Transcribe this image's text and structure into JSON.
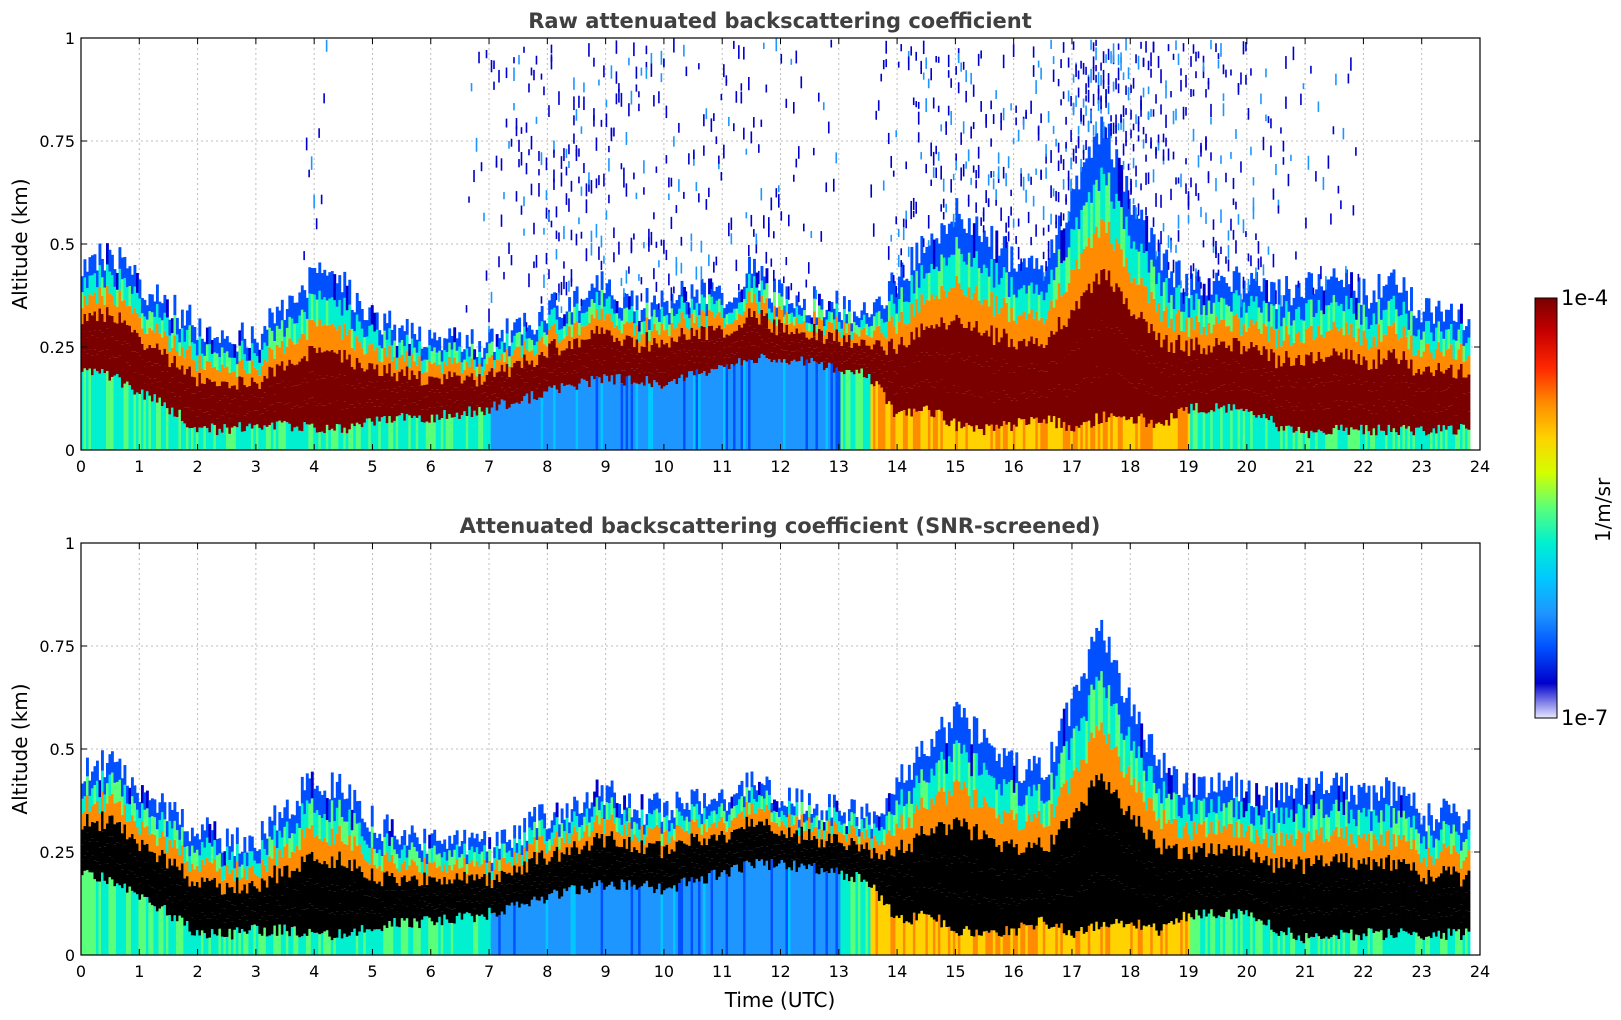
{
  "colors": {
    "colormap": [
      "#e8e8ff",
      "#0000cc",
      "#0050ff",
      "#1e96ff",
      "#00c8ff",
      "#00f0d0",
      "#5aff7a",
      "#d2ff00",
      "#ffd200",
      "#ff8c00",
      "#ff2800",
      "#c80000",
      "#7a0000"
    ],
    "screened_core": "#000000",
    "grid": "#bdbdbd"
  },
  "chart_data": [
    {
      "type": "heatmap",
      "title": "Raw attenuated backscattering coefficient",
      "xlabel": "",
      "ylabel": "Altitude (km)",
      "xlim": [
        0,
        24
      ],
      "ylim": [
        0,
        1
      ],
      "x_ticks": [
        "0",
        "1",
        "2",
        "3",
        "4",
        "5",
        "6",
        "7",
        "8",
        "9",
        "10",
        "11",
        "12",
        "13",
        "14",
        "15",
        "16",
        "17",
        "18",
        "19",
        "20",
        "21",
        "22",
        "23",
        "24"
      ],
      "y_ticks": [
        "0",
        "0.25",
        "0.5",
        "0.75",
        "1"
      ],
      "grid": true,
      "screened": false,
      "hour_profile": {
        "hour": [
          0,
          0.5,
          1,
          1.5,
          2,
          2.5,
          3,
          3.5,
          4,
          4.5,
          5,
          5.5,
          6,
          6.5,
          7,
          7.5,
          8,
          8.5,
          9,
          9.5,
          10,
          10.5,
          11,
          11.5,
          12,
          12.5,
          13,
          13.5,
          14,
          14.5,
          15,
          15.5,
          16,
          16.5,
          17,
          17.5,
          18,
          18.5,
          19,
          19.5,
          20,
          20.5,
          21,
          21.5,
          22,
          22.5,
          23,
          23.5,
          23.8
        ],
        "top_km": [
          0.44,
          0.48,
          0.4,
          0.35,
          0.3,
          0.28,
          0.27,
          0.36,
          0.42,
          0.4,
          0.32,
          0.28,
          0.28,
          0.27,
          0.26,
          0.3,
          0.34,
          0.37,
          0.4,
          0.35,
          0.36,
          0.38,
          0.38,
          0.44,
          0.37,
          0.36,
          0.35,
          0.33,
          0.42,
          0.5,
          0.58,
          0.52,
          0.46,
          0.44,
          0.62,
          0.8,
          0.6,
          0.46,
          0.4,
          0.42,
          0.4,
          0.38,
          0.4,
          0.42,
          0.38,
          0.4,
          0.34,
          0.34,
          0.32
        ],
        "base_km": [
          0.2,
          0.18,
          0.14,
          0.1,
          0.05,
          0.05,
          0.06,
          0.06,
          0.05,
          0.05,
          0.07,
          0.08,
          0.08,
          0.09,
          0.1,
          0.12,
          0.14,
          0.16,
          0.17,
          0.17,
          0.16,
          0.18,
          0.2,
          0.22,
          0.22,
          0.21,
          0.2,
          0.18,
          0.08,
          0.1,
          0.06,
          0.05,
          0.06,
          0.08,
          0.05,
          0.08,
          0.08,
          0.06,
          0.1,
          0.1,
          0.1,
          0.06,
          0.04,
          0.05,
          0.05,
          0.05,
          0.05,
          0.05,
          0.05
        ]
      },
      "noise_density": [
        0.01,
        0.01,
        0.01,
        0.02,
        0.01,
        0.01,
        0.01,
        0.05,
        0.06,
        0.05,
        0.04,
        0.03,
        0.03,
        0.02,
        0.2,
        0.3,
        0.4,
        0.4,
        0.35,
        0.3,
        0.3,
        0.25,
        0.22,
        0.25,
        0.2,
        0.15,
        0.05,
        0.05,
        0.3,
        0.3,
        0.3,
        0.3,
        0.3,
        0.4,
        0.55,
        0.6,
        0.5,
        0.5,
        0.45,
        0.4,
        0.3,
        0.2,
        0.1,
        0.08,
        0.05,
        0.05,
        0.05,
        0.05,
        0.05
      ]
    },
    {
      "type": "heatmap",
      "title": "Attenuated backscattering coefficient (SNR-screened)",
      "xlabel": "Time (UTC)",
      "ylabel": "Altitude (km)",
      "xlim": [
        0,
        24
      ],
      "ylim": [
        0,
        1
      ],
      "x_ticks": [
        "0",
        "1",
        "2",
        "3",
        "4",
        "5",
        "6",
        "7",
        "8",
        "9",
        "10",
        "11",
        "12",
        "13",
        "14",
        "15",
        "16",
        "17",
        "18",
        "19",
        "20",
        "21",
        "22",
        "23",
        "24"
      ],
      "y_ticks": [
        "0",
        "0.25",
        "0.5",
        "0.75",
        "1"
      ],
      "grid": true,
      "screened": true
    }
  ],
  "colorbar": {
    "label": "1/m/sr",
    "max_label": "1e-4",
    "min_label": "1e-7",
    "scale": "log"
  }
}
